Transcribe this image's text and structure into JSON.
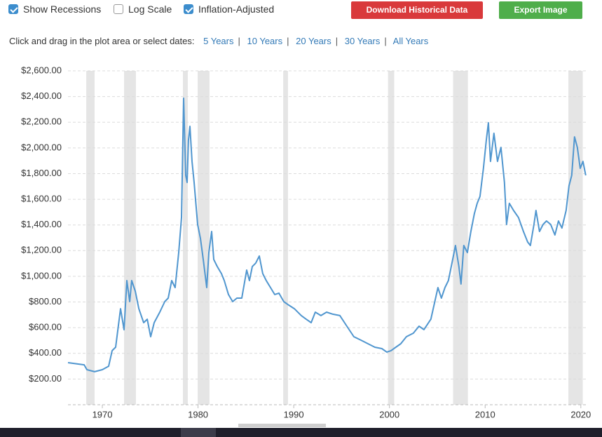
{
  "controls": {
    "checkboxes": [
      {
        "label": "Show Recessions",
        "checked": true
      },
      {
        "label": "Log Scale",
        "checked": false
      },
      {
        "label": "Inflation-Adjusted",
        "checked": true
      }
    ],
    "buttons": [
      {
        "label": "Download Historical Data",
        "color": "#d9393b"
      },
      {
        "label": "Export Image",
        "color": "#4fae4b"
      }
    ],
    "prompt": "Click and drag in the plot area or select dates:",
    "ranges": [
      "5 Years",
      "10 Years",
      "20 Years",
      "30 Years",
      "All Years"
    ],
    "separator": "|"
  },
  "chart_data": {
    "type": "line",
    "color": "#5096cf",
    "recession_color": "#e5e5e5",
    "grid": true,
    "xlim": [
      1966.41,
      2020.6
    ],
    "ylim": [
      0,
      2600
    ],
    "xticks": [
      1970,
      1980,
      1990,
      2000,
      2010,
      2020
    ],
    "yticks": [
      {
        "value": 200,
        "label": "$200.00"
      },
      {
        "value": 400,
        "label": "$400.00"
      },
      {
        "value": 600,
        "label": "$600.00"
      },
      {
        "value": 800,
        "label": "$800.00"
      },
      {
        "value": 1000,
        "label": "$1,000.00"
      },
      {
        "value": 1200,
        "label": "$1,200.00"
      },
      {
        "value": 1400,
        "label": "$1,400.00"
      },
      {
        "value": 1600,
        "label": "$1,600.00"
      },
      {
        "value": 1800,
        "label": "$1,800.00"
      },
      {
        "value": 2000,
        "label": "$2,000.00"
      },
      {
        "value": 2200,
        "label": "$2,200.00"
      },
      {
        "value": 2400,
        "label": "$2,400.00"
      },
      {
        "value": 2600,
        "label": "$2,600.00"
      }
    ],
    "recessions": [
      [
        1968.32,
        1969.19
      ],
      [
        1972.27,
        1973.51
      ],
      [
        1978.42,
        1978.93
      ],
      [
        1979.96,
        1981.2
      ],
      [
        1988.9,
        1989.4
      ],
      [
        1999.85,
        2000.5
      ],
      [
        2006.65,
        2008.2
      ],
      [
        2018.7,
        2020.2
      ]
    ],
    "x": [
      1966.41,
      1968.1,
      1968.39,
      1969.19,
      1970.0,
      1970.66,
      1971.02,
      1971.39,
      1971.9,
      1972.27,
      1972.56,
      1972.86,
      1973.07,
      1973.44,
      1973.81,
      1974.32,
      1974.69,
      1975.05,
      1975.42,
      1976.0,
      1976.52,
      1976.88,
      1977.25,
      1977.61,
      1977.98,
      1978.27,
      1978.49,
      1978.71,
      1978.86,
      1979.0,
      1979.15,
      1979.37,
      1979.59,
      1979.96,
      1980.25,
      1980.54,
      1980.91,
      1981.13,
      1981.42,
      1981.64,
      1982.01,
      1982.45,
      1982.74,
      1983.18,
      1983.62,
      1984.06,
      1984.57,
      1985.08,
      1985.37,
      1985.67,
      1986.03,
      1986.4,
      1986.76,
      1987.13,
      1987.57,
      1988.01,
      1988.45,
      1988.96,
      1989.47,
      1990.06,
      1990.79,
      1991.3,
      1991.82,
      1992.25,
      1992.84,
      1993.43,
      1994.08,
      1994.82,
      1995.55,
      1996.28,
      1997.01,
      1997.75,
      1998.48,
      1999.21,
      1999.72,
      2000.16,
      2000.67,
      2001.19,
      2001.77,
      2002.5,
      2003.09,
      2003.6,
      2004.33,
      2005.07,
      2005.43,
      2005.8,
      2006.16,
      2006.53,
      2006.9,
      2007.26,
      2007.48,
      2007.77,
      2008.14,
      2008.51,
      2008.87,
      2009.17,
      2009.46,
      2009.82,
      2010.12,
      2010.34,
      2010.56,
      2010.92,
      2011.29,
      2011.65,
      2012.02,
      2012.24,
      2012.53,
      2012.97,
      2013.48,
      2014.0,
      2014.44,
      2014.73,
      2015.1,
      2015.31,
      2015.68,
      2016.05,
      2016.41,
      2016.85,
      2017.29,
      2017.66,
      2018.02,
      2018.46,
      2018.76,
      2019.05,
      2019.34,
      2019.63,
      2019.93,
      2020.22,
      2020.51
    ],
    "values": [
      328,
      311,
      273,
      257,
      273,
      300,
      421,
      448,
      748,
      584,
      967,
      803,
      967,
      885,
      748,
      639,
      666,
      530,
      639,
      721,
      803,
      830,
      967,
      912,
      1185,
      1458,
      2387,
      1786,
      1731,
      2059,
      2168,
      1895,
      1731,
      1404,
      1295,
      1131,
      912,
      1185,
      1349,
      1131,
      1076,
      1021,
      967,
      858,
      803,
      830,
      830,
      1049,
      967,
      1076,
      1103,
      1158,
      1021,
      967,
      912,
      858,
      869,
      803,
      776,
      748,
      694,
      666,
      639,
      721,
      694,
      721,
      705,
      694,
      612,
      530,
      503,
      475,
      448,
      437,
      410,
      421,
      448,
      475,
      530,
      557,
      612,
      585,
      666,
      912,
      830,
      912,
      967,
      1103,
      1240,
      1076,
      940,
      1240,
      1185,
      1349,
      1486,
      1568,
      1622,
      1841,
      2059,
      2196,
      1895,
      2114,
      1895,
      2004,
      1731,
      1404,
      1568,
      1513,
      1458,
      1349,
      1267,
      1240,
      1404,
      1513,
      1349,
      1404,
      1431,
      1404,
      1322,
      1431,
      1376,
      1513,
      1704,
      1786,
      2086,
      2004,
      1841,
      1895,
      1786
    ]
  }
}
